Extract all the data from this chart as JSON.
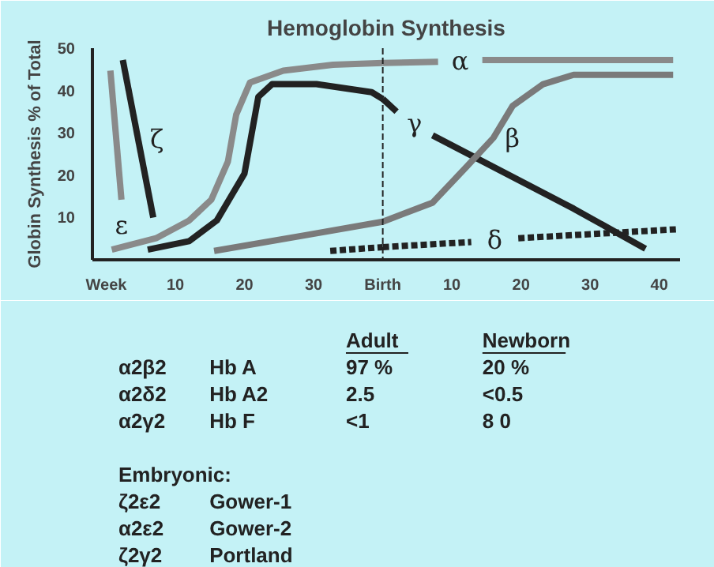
{
  "chart_data": [
    {
      "type": "line",
      "title": "Hemoglobin Synthesis",
      "ylabel": "Globin Synthesis % of Total",
      "xlim": [
        -2,
        40
      ],
      "ylim": [
        0,
        50
      ],
      "xticks": [
        {
          "value": 0,
          "label": "Week"
        },
        10,
        20,
        30
      ],
      "yticks": [
        10,
        20,
        30,
        40,
        50
      ],
      "grid": false,
      "series": [
        {
          "color": "#8a8a8a",
          "x": [
            0.8,
            7.2,
            12,
            15.2,
            17.6,
            18.8,
            20.8,
            25.6,
            32.8,
            40
          ],
          "values": [
            2.4,
            5.1,
            9.3,
            14.2,
            23.2,
            34.3,
            41.9,
            44.7,
            46.1,
            46.5
          ]
        },
        {
          "color": "#222222",
          "x": [
            6,
            12,
            16,
            20,
            22,
            24,
            30.4,
            38.4,
            40
          ],
          "values": [
            2.4,
            4.4,
            9.3,
            20.4,
            38.5,
            41.5,
            41.5,
            39.6,
            38
          ]
        },
        {
          "color": "#7a7a7a",
          "x": [
            15.6,
            28.8,
            40
          ],
          "values": [
            2.1,
            5.8,
            9
          ]
        },
        {
          "color": "#222222",
          "line_style": "dashed",
          "x": [
            32.4,
            40
          ],
          "values": [
            2.1,
            3
          ]
        },
        {
          "name": "ζ",
          "color": "#222222",
          "x": [
            2.4,
            6.8
          ],
          "values": [
            47.2,
            10
          ]
        },
        {
          "name": "ε",
          "color": "#8a8a8a",
          "x": [
            0.6,
            2.2
          ],
          "values": [
            44.7,
            14.2
          ]
        }
      ],
      "annotations": [
        "Adult",
        "Newborn",
        "α2β2",
        "Hb A",
        "97 %",
        "20 %",
        "α2δ2",
        "Hb A2",
        "2.5",
        "<0.5",
        "α2γ2",
        "Hb F",
        "<1",
        "8 0",
        "Embryonic:",
        "ζ2ε2",
        "Gower-1",
        "α2ε2",
        "Gower-2",
        "ζ2γ2",
        "Portland"
      ]
    },
    {
      "type": "line",
      "xlim": [
        0,
        43
      ],
      "ylim": [
        0,
        50
      ],
      "xticks": [
        {
          "value": 0,
          "label": "Birth"
        },
        10,
        20,
        30,
        40
      ],
      "tick_labels": "x",
      "series": [
        {
          "name": "α",
          "color": "#8a8a8a",
          "x": [
            0,
            8,
            11,
            14.4,
            42
          ],
          "values": [
            46.5,
            46.8,
            null,
            47.2,
            47.2
          ]
        },
        {
          "name": "γ",
          "color": "#222222",
          "x": [
            0,
            2,
            4,
            7.2,
            27.6,
            38
          ],
          "values": [
            38,
            35,
            null,
            29.4,
            12.1,
            2.6
          ]
        },
        {
          "name": "β",
          "color": "#7a7a7a",
          "x": [
            0,
            7.2,
            12,
            16,
            18.8,
            23.2,
            27.6,
            42
          ],
          "values": [
            9,
            13.5,
            21.8,
            28.8,
            36.4,
            41.5,
            43.7,
            43.7
          ]
        },
        {
          "name": "δ",
          "color": "#222222",
          "line_style": "dashed",
          "x": [
            0,
            12.8,
            16,
            19.6,
            42.4
          ],
          "values": [
            3,
            4.2,
            null,
            5.1,
            7.2
          ]
        }
      ],
      "ref_lines": [
        {
          "axis": "x",
          "value": 0,
          "line_style": "dashed",
          "color": "#222222"
        }
      ]
    }
  ]
}
